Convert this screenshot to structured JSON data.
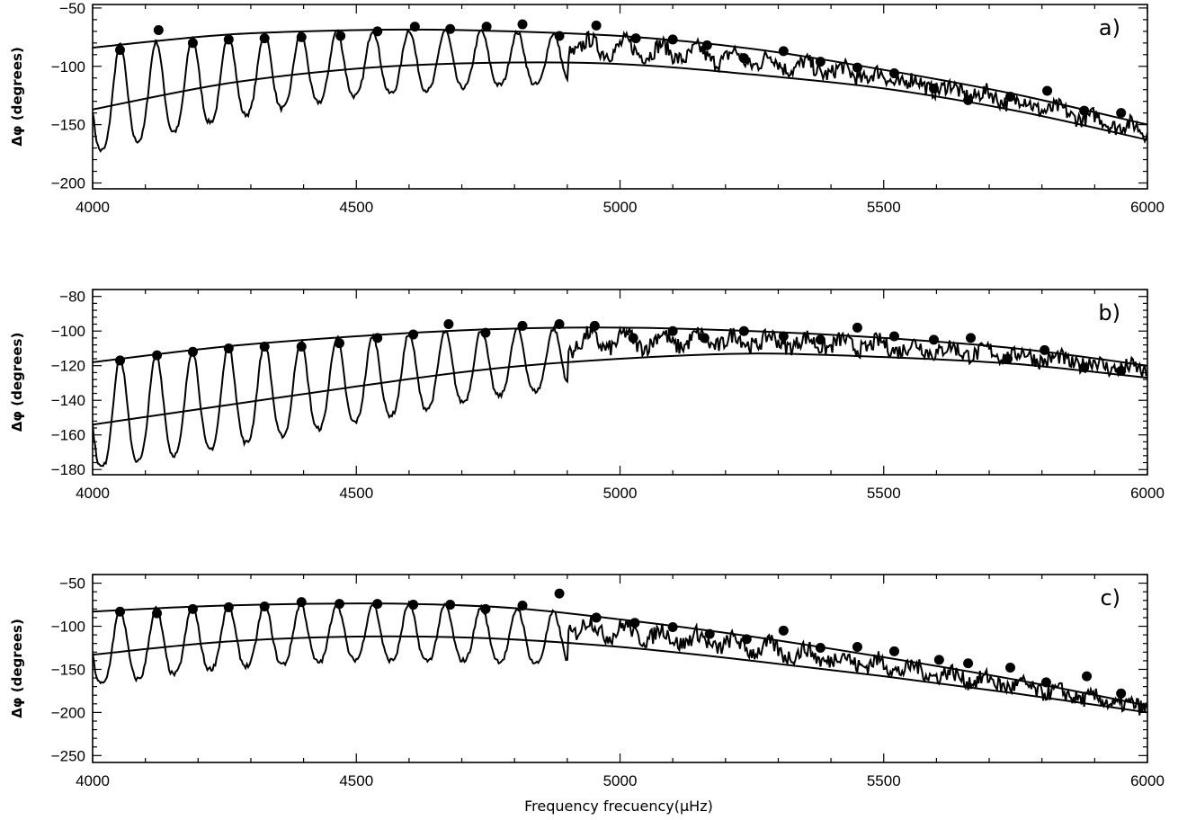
{
  "xlabel": "Frequency frecuency(μHz)",
  "ylabel": "Δφ (degrees)",
  "chart_data": [
    {
      "type": "line",
      "panel_label": "a)",
      "xlim": [
        4000,
        6000
      ],
      "ylim": [
        -205,
        -47
      ],
      "x_ticks": [
        4000,
        4500,
        5000,
        5500,
        6000
      ],
      "y_ticks": [
        -200,
        -150,
        -100,
        -50
      ],
      "oscillation": {
        "period": 68.5,
        "phase_start": 4052
      },
      "upper_envelope": {
        "x": [
          4000,
          4250,
          4500,
          4700,
          5000,
          5250,
          5500,
          5750,
          6000
        ],
        "y": [
          -84,
          -73,
          -69,
          -69,
          -74,
          -85,
          -103,
          -124,
          -150
        ]
      },
      "lower_envelope": {
        "x": [
          4000,
          4250,
          4500,
          4750,
          5000,
          5250,
          5500,
          5750,
          6000
        ],
        "y": [
          -137,
          -115,
          -102,
          -97,
          -98,
          -107,
          -119,
          -138,
          -163
        ]
      },
      "points": {
        "x": [
          4052,
          4125,
          4190,
          4258,
          4326,
          4396,
          4470,
          4540,
          4611,
          4678,
          4747,
          4815,
          4885,
          4955,
          5030,
          5100,
          5165,
          5235,
          5310,
          5380,
          5450,
          5520,
          5595,
          5660,
          5740,
          5810,
          5880,
          5950
        ],
        "y": [
          -86,
          -69,
          -80,
          -77,
          -76,
          -75,
          -74,
          -70,
          -66,
          -68,
          -66,
          -64,
          -74,
          -65,
          -76,
          -77,
          -82,
          -93,
          -87,
          -96,
          -101,
          -106,
          -119,
          -129,
          -126,
          -121,
          -138,
          -140
        ]
      }
    },
    {
      "type": "line",
      "panel_label": "b)",
      "xlim": [
        4000,
        6000
      ],
      "ylim": [
        -183,
        -76
      ],
      "x_ticks": [
        4000,
        4500,
        5000,
        5500,
        6000
      ],
      "y_ticks": [
        -180,
        -160,
        -140,
        -120,
        -100,
        -80
      ],
      "oscillation": {
        "period": 68.5,
        "phase_start": 4052
      },
      "upper_envelope": {
        "x": [
          4000,
          4250,
          4500,
          4750,
          5000,
          5250,
          5500,
          5750,
          6000
        ],
        "y": [
          -118,
          -109,
          -103,
          -99,
          -98,
          -100,
          -104,
          -110,
          -120
        ]
      },
      "lower_envelope": {
        "x": [
          4000,
          4250,
          4500,
          4750,
          5000,
          5250,
          5500,
          5750,
          6000
        ],
        "y": [
          -154,
          -143,
          -132,
          -122,
          -116,
          -113,
          -115,
          -119,
          -127
        ]
      },
      "points": {
        "x": [
          4052,
          4122,
          4190,
          4258,
          4326,
          4396,
          4468,
          4540,
          4608,
          4675,
          4745,
          4815,
          4885,
          4952,
          5025,
          5100,
          5160,
          5235,
          5310,
          5380,
          5450,
          5520,
          5595,
          5665,
          5735,
          5805,
          5880,
          5950
        ],
        "y": [
          -117,
          -114,
          -112,
          -110,
          -109,
          -109,
          -107,
          -104,
          -102,
          -96,
          -101,
          -97,
          -96,
          -97,
          -104,
          -100,
          -104,
          -100,
          -103,
          -105,
          -98,
          -103,
          -105,
          -104,
          -116,
          -111,
          -121,
          -123
        ]
      }
    },
    {
      "type": "line",
      "panel_label": "c)",
      "xlim": [
        4000,
        6000
      ],
      "ylim": [
        -258,
        -40
      ],
      "x_ticks": [
        4000,
        4500,
        5000,
        5500,
        6000
      ],
      "y_ticks": [
        -250,
        -200,
        -150,
        -100,
        -50
      ],
      "oscillation": {
        "period": 68.5,
        "phase_start": 4052
      },
      "upper_envelope": {
        "x": [
          4000,
          4200,
          4400,
          4600,
          4800,
          5000,
          5250,
          5500,
          5750,
          6000
        ],
        "y": [
          -83,
          -77,
          -74,
          -74,
          -79,
          -92,
          -112,
          -136,
          -162,
          -192
        ]
      },
      "lower_envelope": {
        "x": [
          4000,
          4250,
          4500,
          4750,
          5000,
          5250,
          5500,
          5750,
          6000
        ],
        "y": [
          -133,
          -118,
          -112,
          -114,
          -124,
          -140,
          -158,
          -178,
          -200
        ]
      },
      "points": {
        "x": [
          4052,
          4122,
          4190,
          4258,
          4326,
          4396,
          4468,
          4540,
          4608,
          4678,
          4745,
          4815,
          4885,
          4955,
          5028,
          5100,
          5170,
          5240,
          5310,
          5380,
          5450,
          5520,
          5605,
          5660,
          5740,
          5808,
          5885,
          5950
        ],
        "y": [
          -83,
          -85,
          -80,
          -78,
          -77,
          -72,
          -74,
          -74,
          -75,
          -75,
          -80,
          -76,
          -62,
          -90,
          -96,
          -101,
          -109,
          -115,
          -105,
          -125,
          -124,
          -129,
          -139,
          -143,
          -148,
          -165,
          -158,
          -178
        ]
      }
    }
  ]
}
